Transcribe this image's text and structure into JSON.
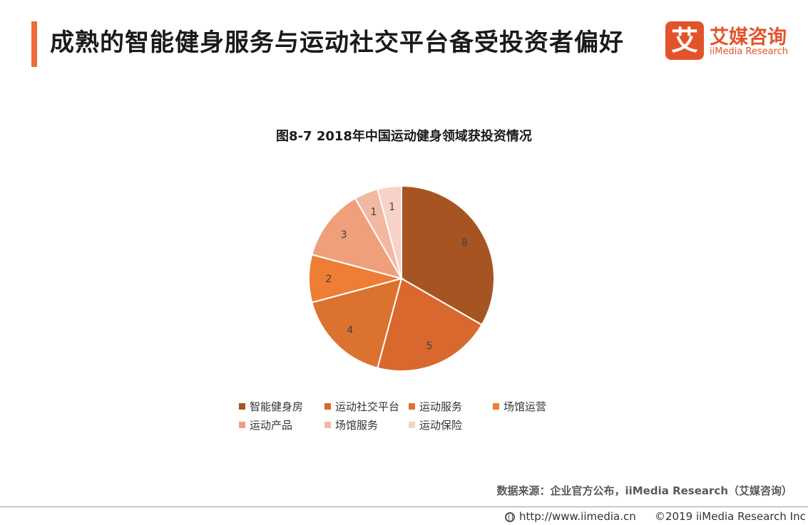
{
  "header": {
    "title": "成熟的智能健身服务与运动社交平台备受投资者偏好"
  },
  "logo": {
    "mark": "艾",
    "name_cn": "艾媒咨询",
    "name_en": "iiMedia Research",
    "color": "#e3532b"
  },
  "colors": {
    "accent": "#ee6a36"
  },
  "chart_data": {
    "type": "pie",
    "title": "图8-7  2018年中国运动健身领域获投资情况",
    "categories": [
      "智能健身房",
      "运动社交平台",
      "运动服务",
      "场馆运营",
      "运动产品",
      "场馆服务",
      "运动保险"
    ],
    "values": [
      8,
      5,
      4,
      2,
      3,
      1,
      1
    ],
    "colors": [
      "#a65522",
      "#d9682e",
      "#dc722f",
      "#ee7d35",
      "#ef9f7a",
      "#f2b8a2",
      "#f7d2c7"
    ],
    "data_labels": [
      "8",
      "5",
      "4",
      "2",
      "3",
      "1",
      "1"
    ],
    "start_angle": "12 o'clock",
    "direction": "clockwise",
    "legend_position": "bottom"
  },
  "footer": {
    "source": "数据来源：企业官方公布，iiMedia Research（艾媒咨询）",
    "url": "http://www.iimedia.cn",
    "copyright": "©2019  iiMedia Research  Inc"
  }
}
